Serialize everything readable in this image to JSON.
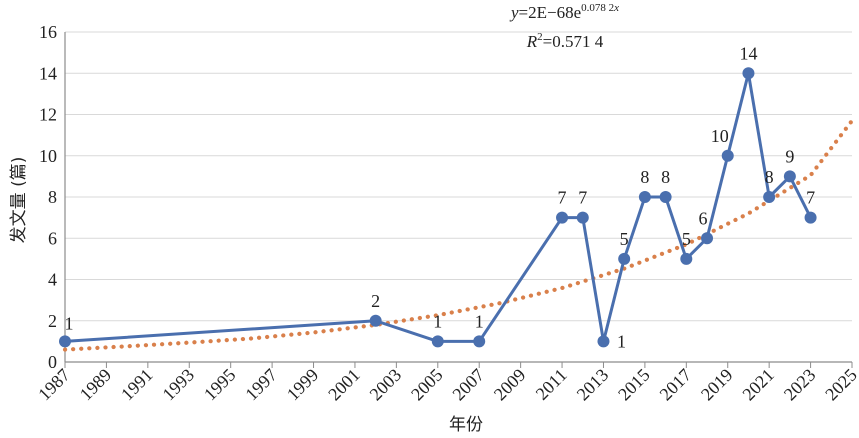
{
  "chart_data": {
    "type": "line",
    "title": "",
    "xlabel": "年份",
    "ylabel": "发文量 (篇)",
    "xlim": [
      1987,
      2025
    ],
    "ylim": [
      0,
      16
    ],
    "x_ticks": [
      "1987",
      "1989",
      "1991",
      "1993",
      "1995",
      "1997",
      "1999",
      "2001",
      "2003",
      "2005",
      "2007",
      "2009",
      "2011",
      "2013",
      "2015",
      "2017",
      "2019",
      "2021",
      "2023",
      "2025"
    ],
    "y_ticks": [
      "0",
      "2",
      "4",
      "6",
      "8",
      "10",
      "12",
      "14",
      "16"
    ],
    "grid": "horizontal",
    "series": [
      {
        "x": [
          1987,
          2002,
          2005,
          2007,
          2011,
          2012,
          2013,
          2014,
          2015,
          2016,
          2017,
          2018,
          2019,
          2020,
          2021,
          2022,
          2023
        ],
        "y": [
          1,
          2,
          1,
          1,
          7,
          7,
          1,
          5,
          8,
          8,
          5,
          6,
          10,
          14,
          8,
          9,
          7
        ],
        "labels": [
          "1",
          "2",
          "1",
          "1",
          "7",
          "7",
          "1",
          "5",
          "8",
          "8",
          "5",
          "6",
          "10",
          "14",
          "8",
          "9",
          "7"
        ],
        "color": "#4a6fae"
      }
    ],
    "trendline": {
      "type": "exponential",
      "color": "#d9804b",
      "points": [
        [
          1987,
          0.6
        ],
        [
          1990,
          0.76
        ],
        [
          1993,
          0.94
        ],
        [
          1996,
          1.14
        ],
        [
          1999,
          1.43
        ],
        [
          2002,
          1.8
        ],
        [
          2005,
          2.27
        ],
        [
          2008,
          2.85
        ],
        [
          2011,
          3.59
        ],
        [
          2014,
          4.53
        ],
        [
          2017,
          5.7
        ],
        [
          2020,
          7.2
        ],
        [
          2023,
          9.05
        ],
        [
          2025,
          11.7
        ]
      ],
      "equation_prefix": "y",
      "equation_mid": "=2E−68e",
      "equation_exp": "0.078 2",
      "equation_exp_var": "x",
      "r2_prefix": "R",
      "r2_sup": "2",
      "r2_value": "=0.571 4"
    }
  }
}
